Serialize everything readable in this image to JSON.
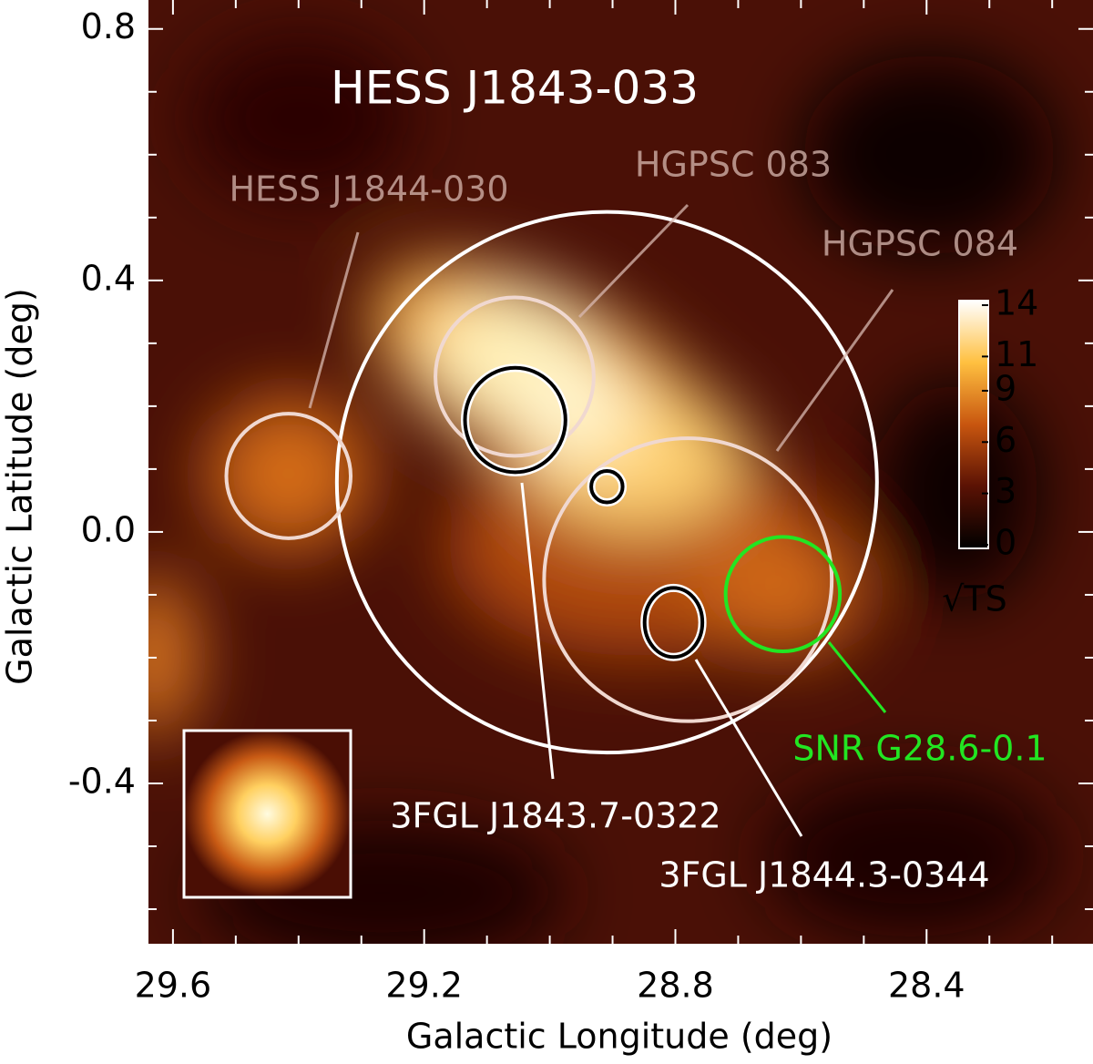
{
  "chart_data": {
    "type": "skymap",
    "title": "HESS J1843-033",
    "x_label": "Galactic Longitude (deg)",
    "y_label": "Galactic Latitude (deg)",
    "xlim": [
      29.639,
      28.135
    ],
    "ylim": [
      -0.655,
      0.846
    ],
    "xticks": [
      29.6,
      29.2,
      28.8,
      28.4
    ],
    "xticks_minor": [
      29.5,
      29.4,
      29.3,
      29.1,
      29.0,
      28.9,
      28.7,
      28.6,
      28.5,
      28.3,
      28.2
    ],
    "yticks": [
      0.8,
      0.4,
      {
        "value": 0,
        "label": "0.0"
      },
      -0.4
    ],
    "yticks_minor": [
      0.7,
      0.6,
      0.5,
      0.3,
      0.2,
      0.1,
      -0.1,
      -0.2,
      -0.3,
      -0.5,
      -0.6
    ],
    "colorbar": {
      "label": "√TS",
      "lim": [
        0,
        14
      ],
      "ticks": [
        0,
        3,
        6,
        9,
        11,
        14
      ]
    },
    "regions": [
      {
        "l": 28.909,
        "b": 0.079,
        "rx": 0.43,
        "ry": 0.43,
        "color": "#ffffff"
      },
      {
        "name": "HESS J1844-030",
        "l": 29.416,
        "b": 0.089,
        "rx": 0.099,
        "ry": 0.099,
        "color": "#f0d8d0"
      },
      {
        "name": "HGPSC 083",
        "l": 29.056,
        "b": 0.247,
        "rx": 0.126,
        "ry": 0.126,
        "color": "#f0d8d0"
      },
      {
        "name": "HGPSC 084",
        "l": 28.78,
        "b": -0.076,
        "rx": 0.229,
        "ry": 0.225,
        "color": "#f0d8d0"
      },
      {
        "name": "SNR G28.6-0.1",
        "l": 28.629,
        "b": -0.099,
        "rx": 0.091,
        "ry": 0.091,
        "color": "#22e622"
      },
      {
        "name": "3FGL J1843.7-0322",
        "l": 29.055,
        "b": 0.178,
        "rx": 0.08,
        "ry": 0.083,
        "color": "#000000"
      },
      {
        "name": "3FGL J1844.3-0344",
        "l": 28.803,
        "b": -0.144,
        "rx": 0.046,
        "ry": 0.055,
        "color": "#000000"
      },
      {
        "l": 28.909,
        "b": 0.072,
        "rx": 0.025,
        "ry": 0.025,
        "color": "#000000"
      }
    ]
  }
}
